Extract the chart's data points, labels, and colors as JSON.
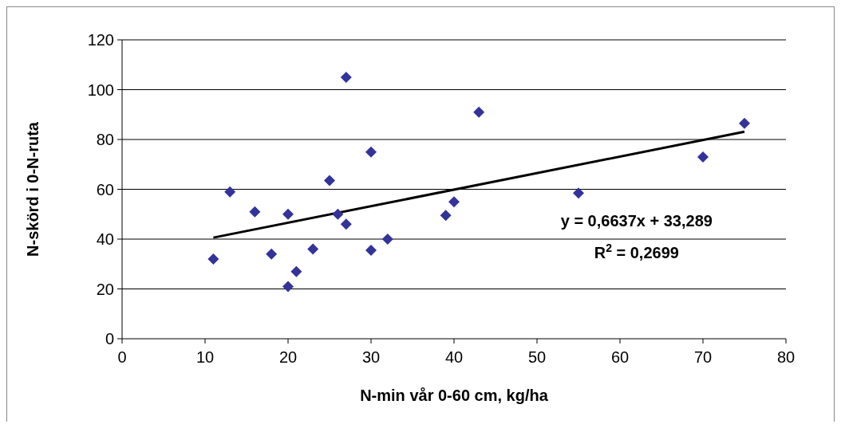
{
  "chart_data": {
    "type": "scatter",
    "xlabel": "N-min vår 0-60 cm, kg/ha",
    "ylabel": "N-skörd i 0-N-ruta",
    "xlim": [
      0,
      80
    ],
    "xticks": [
      0,
      10,
      20,
      30,
      40,
      50,
      60,
      70,
      80
    ],
    "ylim": [
      0,
      120
    ],
    "yticks": [
      0,
      20,
      40,
      60,
      80,
      100,
      120
    ],
    "grid": "y",
    "series": [
      {
        "marker": "diamond",
        "color": "#333399",
        "x": [
          11,
          13,
          16,
          18,
          20,
          20,
          21,
          23,
          25,
          26,
          27,
          27,
          30,
          30,
          32,
          39,
          40,
          43,
          55,
          70,
          75
        ],
        "values": [
          32,
          59,
          51,
          34,
          50,
          21,
          27,
          36,
          63.5,
          50,
          105,
          46,
          75,
          35.5,
          40,
          49.5,
          55,
          91,
          58.5,
          73,
          86.5
        ]
      },
      {
        "type": "line",
        "color": "#000000",
        "x": [
          11,
          75
        ],
        "values": [
          40.6,
          83.1
        ]
      }
    ],
    "annotations": [
      "y = 0,6637x + 33,289",
      "R$^{2}$ = 0,2699"
    ]
  }
}
